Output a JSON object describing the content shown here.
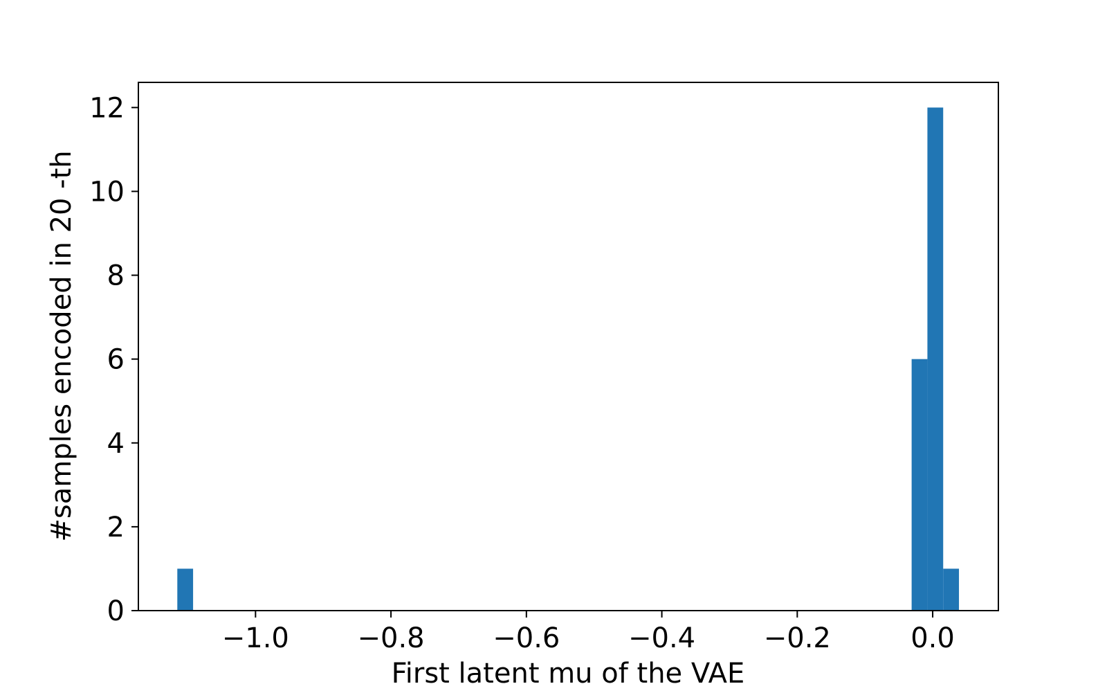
{
  "chart_data": {
    "type": "bar",
    "xlabel": "First latent mu of the VAE",
    "ylabel": "#samples encoded in 20 -th",
    "xlim": [
      -1.173,
      0.097
    ],
    "ylim": [
      0,
      12.6
    ],
    "grid": false,
    "x_ticks": [
      {
        "value": -1.0,
        "label": "−1.0"
      },
      {
        "value": -0.8,
        "label": "−0.8"
      },
      {
        "value": -0.6,
        "label": "−0.6"
      },
      {
        "value": -0.4,
        "label": "−0.4"
      },
      {
        "value": -0.2,
        "label": "−0.2"
      },
      {
        "value": 0.0,
        "label": "0.0"
      }
    ],
    "y_ticks": [
      {
        "value": 0,
        "label": "0"
      },
      {
        "value": 2,
        "label": "2"
      },
      {
        "value": 4,
        "label": "4"
      },
      {
        "value": 6,
        "label": "6"
      },
      {
        "value": 8,
        "label": "8"
      },
      {
        "value": 10,
        "label": "10"
      },
      {
        "value": 12,
        "label": "12"
      }
    ],
    "bins": [
      {
        "x0": -1.1155,
        "x1": -1.0922,
        "count": 1
      },
      {
        "x0": -0.0311,
        "x1": -0.0078,
        "count": 6
      },
      {
        "x0": -0.0078,
        "x1": 0.0155,
        "count": 12
      },
      {
        "x0": 0.0155,
        "x1": 0.0388,
        "count": 1
      }
    ],
    "colors": {
      "bar": "#2176b4",
      "axes": "#000000"
    }
  }
}
